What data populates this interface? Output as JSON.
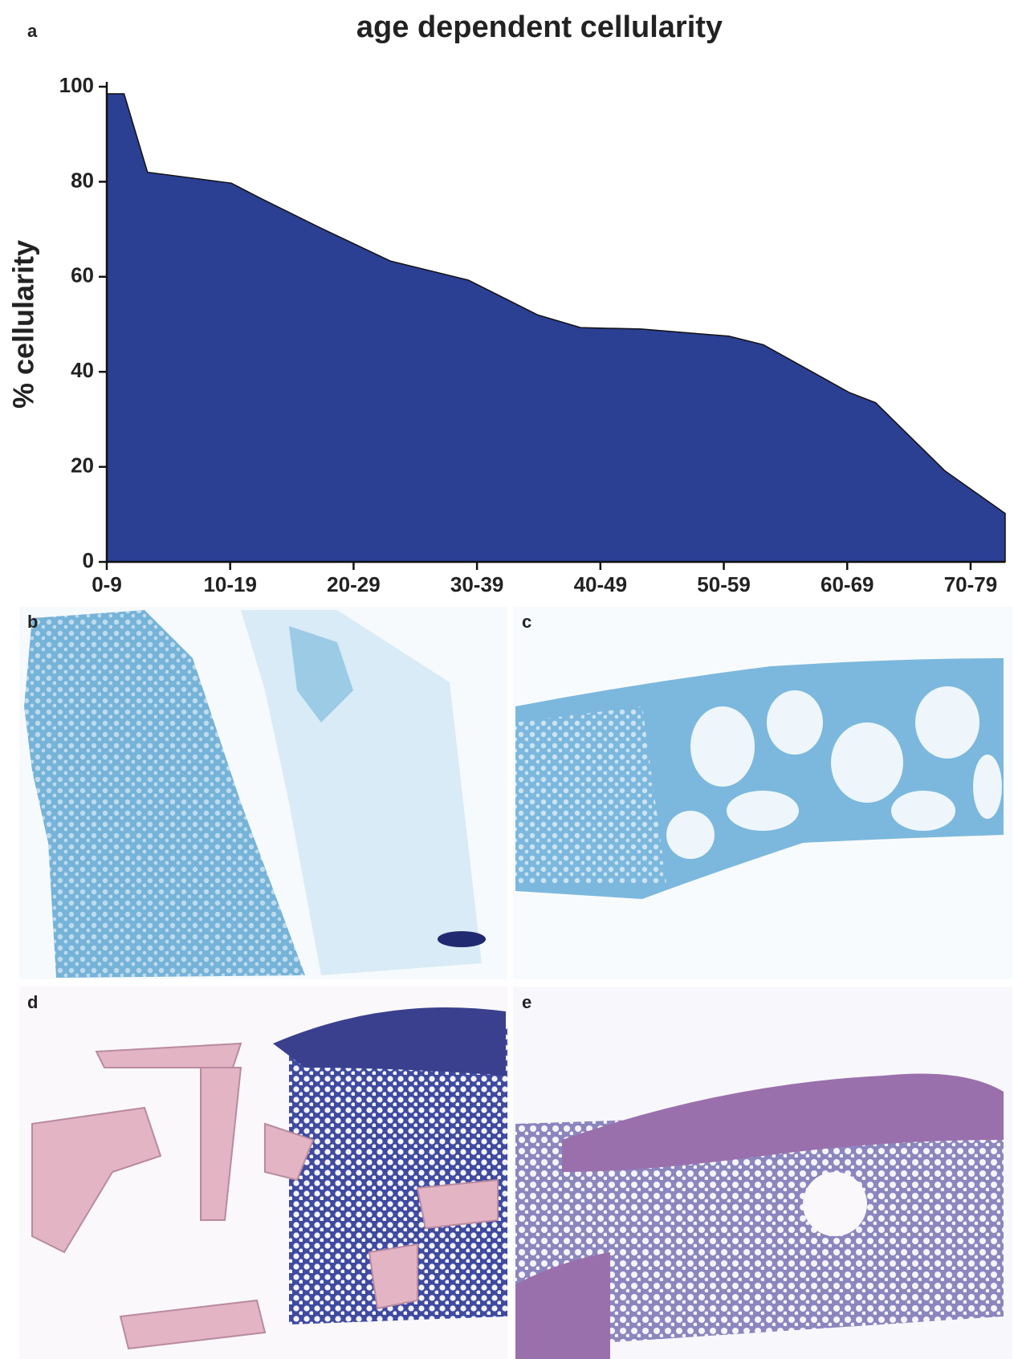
{
  "chart_data": {
    "type": "area",
    "title": "age dependent cellularity",
    "y_label": "% cellularity",
    "x": [
      0,
      1.4,
      3.3,
      10.1,
      12.4,
      17.3,
      23.0,
      29.3,
      34.9,
      38.4,
      43.3,
      50.4,
      53.2,
      60.2,
      62.3,
      67.9,
      72.8
    ],
    "series": [
      {
        "color": "#2b3f93",
        "values": [
          98.5,
          98.5,
          82,
          79.7,
          76.6,
          70.3,
          63.3,
          59.3,
          52.0,
          49.3,
          49.0,
          47.5,
          45.7,
          35.6,
          33.5,
          19.2,
          10.2
        ]
      }
    ],
    "xlim": [
      0,
      72.8
    ],
    "ylim": [
      0,
      100
    ],
    "xticks": [
      {
        "value": 0,
        "label": "0-9"
      },
      {
        "value": 10,
        "label": "10-19"
      },
      {
        "value": 20,
        "label": "20-29"
      },
      {
        "value": 30,
        "label": "30-39"
      },
      {
        "value": 40,
        "label": "40-49"
      },
      {
        "value": 50,
        "label": "50-59"
      },
      {
        "value": 60,
        "label": "60-69"
      },
      {
        "value": 70,
        "label": "70-79"
      }
    ],
    "yticks": [
      0,
      20,
      40,
      60,
      80,
      100
    ]
  },
  "figure_labels": [
    "a",
    "b",
    "c",
    "d",
    "e"
  ]
}
